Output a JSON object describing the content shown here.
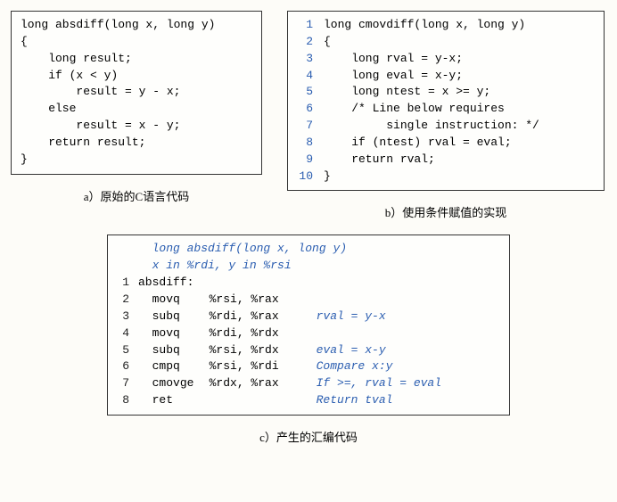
{
  "panel_a": {
    "lines": [
      "long absdiff(long x, long y)",
      "{",
      "    long result;",
      "    if (x < y)",
      "        result = y - x;",
      "    else",
      "        result = x - y;",
      "    return result;",
      "}"
    ],
    "caption": "a）原始的C语言代码"
  },
  "panel_b": {
    "lines": [
      "long cmovdiff(long x, long y)",
      "{",
      "    long rval = y-x;",
      "    long eval = x-y;",
      "    long ntest = x >= y;",
      "    /* Line below requires",
      "         single instruction: */",
      "    if (ntest) rval = eval;",
      "    return rval;",
      "}"
    ],
    "caption": "b）使用条件赋值的实现"
  },
  "panel_c": {
    "signature": "long absdiff(long x, long y)",
    "regnote": "x in %rdi, y in %rsi",
    "rows": [
      {
        "n": "1",
        "label": "absdiff:",
        "op": "",
        "args": "",
        "cmt": ""
      },
      {
        "n": "2",
        "label": "",
        "op": "movq",
        "args": "%rsi, %rax",
        "cmt": ""
      },
      {
        "n": "3",
        "label": "",
        "op": "subq",
        "args": "%rdi, %rax",
        "cmt": "rval = y-x"
      },
      {
        "n": "4",
        "label": "",
        "op": "movq",
        "args": "%rdi, %rdx",
        "cmt": ""
      },
      {
        "n": "5",
        "label": "",
        "op": "subq",
        "args": "%rsi, %rdx",
        "cmt": "eval = x-y"
      },
      {
        "n": "6",
        "label": "",
        "op": "cmpq",
        "args": "%rsi, %rdi",
        "cmt": "Compare x:y"
      },
      {
        "n": "7",
        "label": "",
        "op": "cmovge",
        "args": "%rdx, %rax",
        "cmt": "If >=, rval = eval"
      },
      {
        "n": "8",
        "label": "",
        "op": "ret",
        "args": "",
        "cmt": "Return tval"
      }
    ],
    "caption": "c）产生的汇编代码"
  },
  "colors": {
    "border": "#333333",
    "background": "#fdfcf8",
    "highlight": "#2a5db0"
  }
}
